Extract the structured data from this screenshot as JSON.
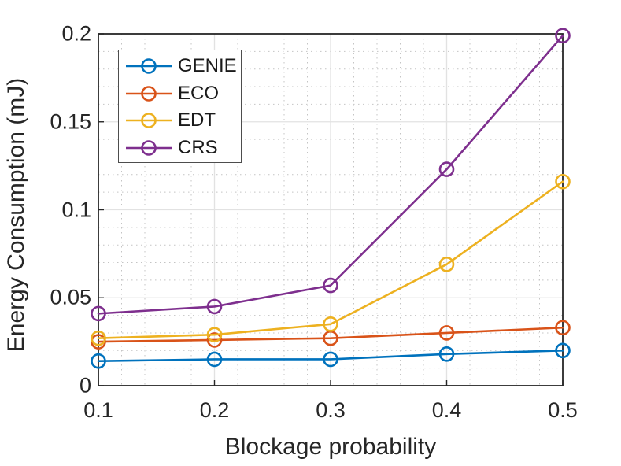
{
  "chart_data": {
    "type": "line",
    "title": "",
    "xlabel": "Blockage probability",
    "ylabel": "Energy Consumption (mJ)",
    "xlim": [
      0.1,
      0.5
    ],
    "ylim": [
      0,
      0.2
    ],
    "xticks": {
      "values": [
        0.1,
        0.2,
        0.3,
        0.4,
        0.5
      ],
      "labels": [
        "0.1",
        "0.2",
        "0.3",
        "0.4",
        "0.5"
      ]
    },
    "yticks": {
      "values": [
        0,
        0.05,
        0.1,
        0.15,
        0.2
      ],
      "labels": [
        "0",
        "0.05",
        "0.1",
        "0.15",
        "0.2"
      ]
    },
    "grid": true,
    "minor_grid": true,
    "minor_x_step": 0.02,
    "minor_y_step": 0.01,
    "legend_position": "top-left-inside",
    "x": [
      0.1,
      0.2,
      0.3,
      0.4,
      0.5
    ],
    "series": [
      {
        "name": "GENIE",
        "color": "#0072BD",
        "marker": "circle",
        "values": [
          0.014,
          0.015,
          0.015,
          0.018,
          0.02
        ]
      },
      {
        "name": "ECO",
        "color": "#D95319",
        "marker": "circle",
        "values": [
          0.025,
          0.026,
          0.027,
          0.03,
          0.033
        ]
      },
      {
        "name": "EDT",
        "color": "#EDB120",
        "marker": "circle",
        "values": [
          0.027,
          0.029,
          0.035,
          0.069,
          0.116
        ]
      },
      {
        "name": "CRS",
        "color": "#7E2F8E",
        "marker": "circle",
        "values": [
          0.041,
          0.045,
          0.057,
          0.123,
          0.199
        ]
      }
    ],
    "style": {
      "axis_color": "#262626",
      "major_grid_color": "#e2e2e2",
      "minor_grid_color": "#c4c4c4",
      "background": "#ffffff"
    }
  }
}
